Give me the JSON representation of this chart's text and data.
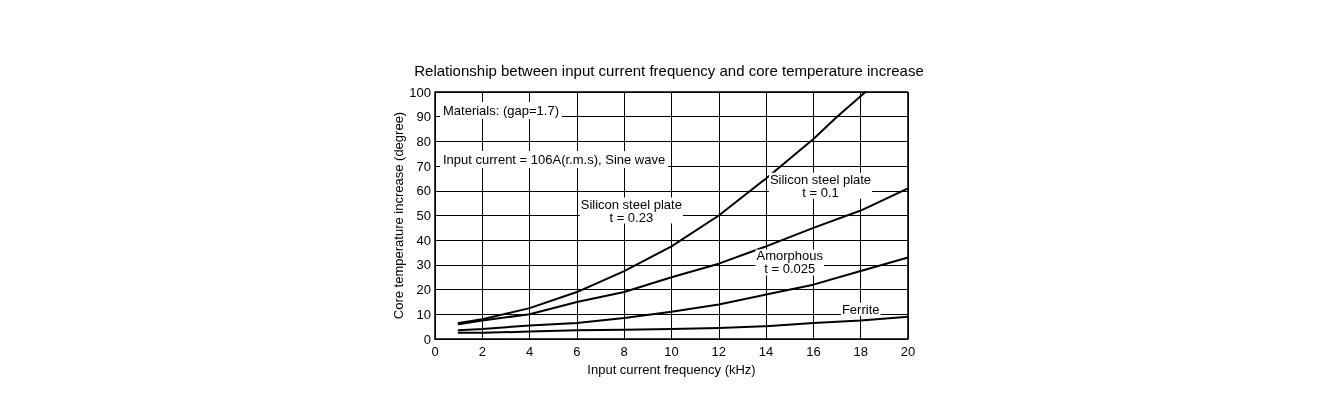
{
  "chart_data": {
    "type": "line",
    "title": "Relationship between input current frequency and core temperature increase",
    "xlabel": "Input current frequency (kHz)",
    "ylabel": "Core temperature increase (degree)",
    "xlim": [
      0,
      20
    ],
    "xticks": [
      0,
      2,
      4,
      6,
      8,
      10,
      12,
      14,
      16,
      18,
      20
    ],
    "ylim": [
      0,
      100
    ],
    "yticks": [
      0,
      10,
      20,
      30,
      40,
      50,
      60,
      70,
      80,
      90,
      100
    ],
    "grid": true,
    "marker": "none",
    "line_style": "solid",
    "series": [
      {
        "name": "Silicon steel plate\nt = 0.23",
        "color": "#000000",
        "x": [
          1,
          2,
          4,
          6,
          8,
          10,
          12,
          14,
          16,
          17,
          18.2
        ],
        "values": [
          6.5,
          8,
          12.5,
          19,
          27.5,
          37.5,
          50,
          65,
          81,
          90,
          100
        ]
      },
      {
        "name": "Silicon steel plate\nt = 0.1",
        "color": "#000000",
        "x": [
          1,
          2,
          4,
          6,
          8,
          10,
          12,
          14,
          16,
          18,
          20
        ],
        "values": [
          6,
          7.5,
          10,
          15,
          19,
          25,
          30.5,
          37.5,
          45,
          52,
          61
        ]
      },
      {
        "name": "Amorphous\nt = 0.025",
        "color": "#000000",
        "x": [
          1,
          2,
          4,
          6,
          8,
          10,
          12,
          14,
          16,
          18,
          20
        ],
        "values": [
          3.5,
          4,
          5.5,
          6.5,
          8.5,
          11,
          14,
          18,
          22,
          27.5,
          33
        ]
      },
      {
        "name": "Ferrite",
        "color": "#000000",
        "x": [
          1,
          2,
          4,
          6,
          8,
          10,
          12,
          14,
          16,
          18,
          20
        ],
        "values": [
          2.5,
          2.5,
          3,
          3.5,
          3.7,
          4,
          4.5,
          5.2,
          6.5,
          7.5,
          9
        ]
      }
    ],
    "annotations": [
      "Materials: (gap=1.7)",
      "Input current = 106A(r.m.s), Sine wave"
    ]
  }
}
